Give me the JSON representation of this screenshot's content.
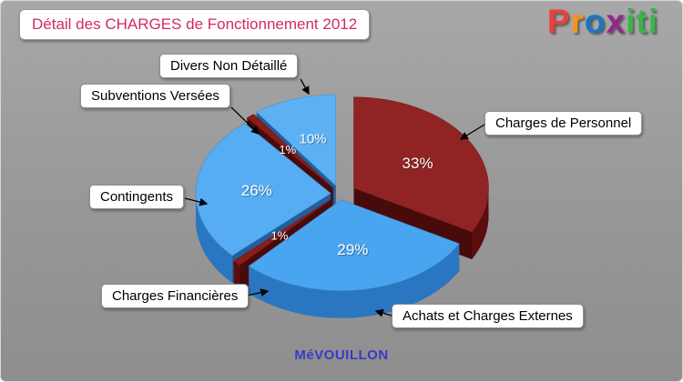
{
  "header": {
    "title": "Détail des CHARGES de Fonctionnement 2012",
    "title_color": "#d32a5e"
  },
  "logo": {
    "name": "proxiti",
    "letters": [
      {
        "char": "P",
        "color": "#e8403a"
      },
      {
        "char": "r",
        "color": "#f7941d"
      },
      {
        "char": "o",
        "color": "#1c75bc"
      },
      {
        "char": "x",
        "color": "#92278f"
      },
      {
        "char": "i",
        "color": "#39b54a"
      },
      {
        "char": "t",
        "color": "#39b54a"
      },
      {
        "char": "i",
        "color": "#39b54a"
      }
    ]
  },
  "footer": {
    "caption": "MéVOUILLON",
    "color": "#3a3ac8"
  },
  "chart_data": {
    "type": "pie",
    "title": "Détail des CHARGES de Fonctionnement 2012",
    "effect": "3d-exploded",
    "direction": "clockwise",
    "start_angle_deg": 0,
    "unit": "%",
    "legend_position": "callout-labels",
    "slices": [
      {
        "label": "Charges de Personnel",
        "value": 33,
        "color": "#902424",
        "side_color": "#5a0e0e",
        "explode": 18
      },
      {
        "label": "Achats et Charges Externes",
        "value": 29,
        "color": "#4aa5f0",
        "side_color": "#2b76c0",
        "explode": 10
      },
      {
        "label": "Charges Financières",
        "value": 1,
        "color": "#8a1c1c",
        "side_color": "#5a0e0e",
        "explode": 12
      },
      {
        "label": "Contingents",
        "value": 26,
        "color": "#56adf3",
        "side_color": "#2b76c0",
        "explode": 10
      },
      {
        "label": "Subventions Versées",
        "value": 1,
        "color": "#8a1c1c",
        "side_color": "#5a0e0e",
        "explode": 12
      },
      {
        "label": "Divers Non Détaillé",
        "value": 10,
        "color": "#5cb1f5",
        "side_color": "#2b76c0",
        "explode": 14
      }
    ]
  }
}
